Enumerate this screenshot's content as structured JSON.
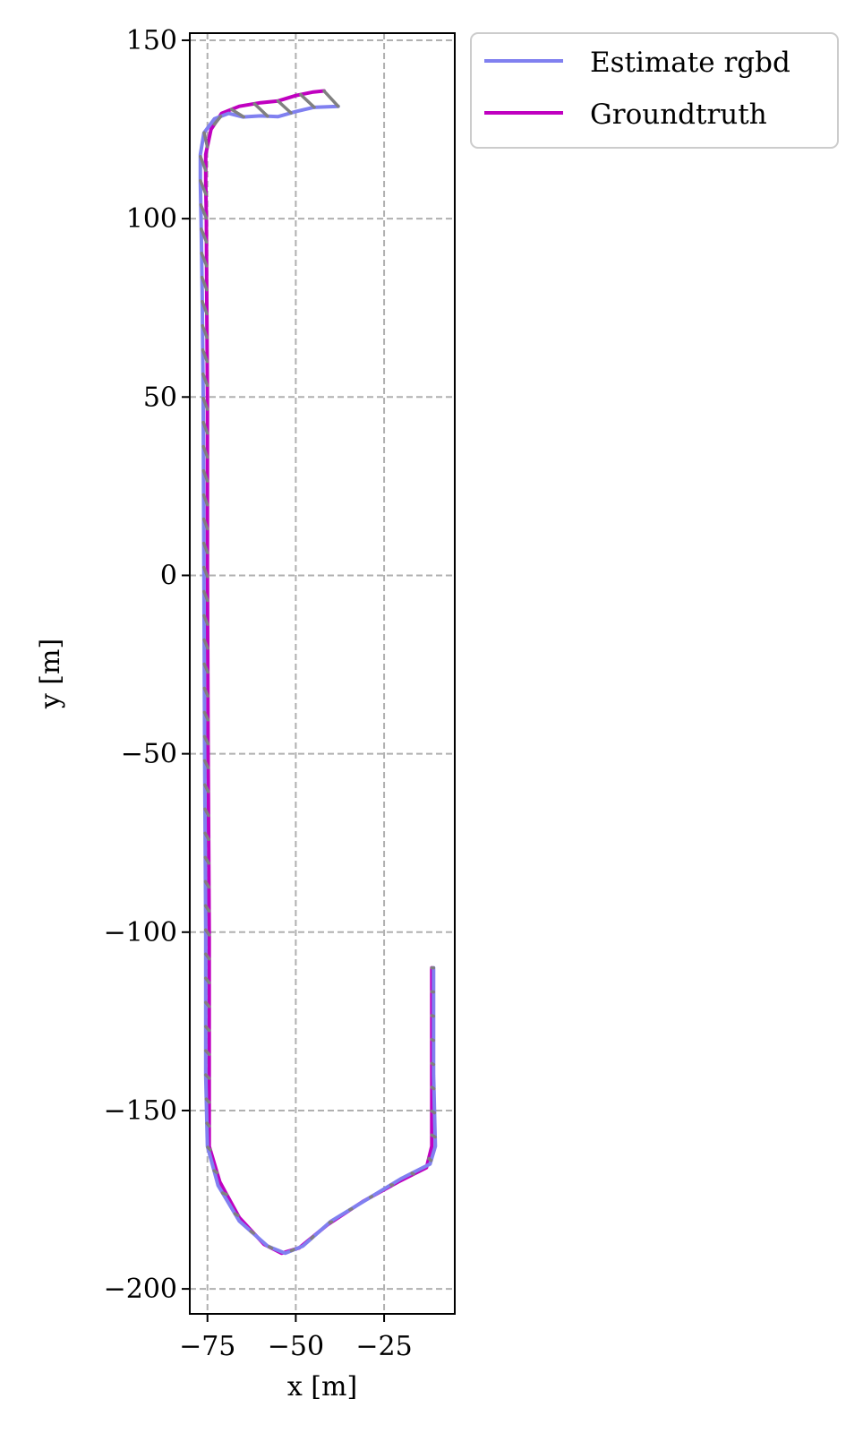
{
  "chart_data": {
    "type": "line",
    "title": "",
    "xlabel": "x [m]",
    "ylabel": "y [m]",
    "xlim": [
      -80,
      -5
    ],
    "ylim": [
      -207,
      152
    ],
    "xticks": [
      -75,
      -50,
      -25
    ],
    "xtick_labels": [
      "−75",
      "−50",
      "−25"
    ],
    "yticks": [
      150,
      100,
      50,
      0,
      -50,
      -100,
      -150,
      -200
    ],
    "ytick_labels": [
      "150",
      "100",
      "50",
      "0",
      "−50",
      "−100",
      "−150",
      "−200"
    ],
    "grid": true,
    "legend_position": "outside-top-right",
    "series": [
      {
        "name": "Estimate rgbd",
        "color": "#8080f0",
        "points": [
          [
            -11,
            -110
          ],
          [
            -11,
            -140
          ],
          [
            -10.5,
            -160
          ],
          [
            -12,
            -165
          ],
          [
            -20,
            -169
          ],
          [
            -30,
            -175
          ],
          [
            -40,
            -181
          ],
          [
            -48,
            -188
          ],
          [
            -53,
            -190
          ],
          [
            -58,
            -188
          ],
          [
            -66,
            -181
          ],
          [
            -72,
            -171
          ],
          [
            -75,
            -160
          ],
          [
            -75.5,
            -140
          ],
          [
            -75.5,
            -100
          ],
          [
            -75.8,
            -50
          ],
          [
            -76,
            0
          ],
          [
            -76.2,
            50
          ],
          [
            -76.5,
            80
          ],
          [
            -76.8,
            100
          ],
          [
            -77,
            110
          ],
          [
            -77,
            118
          ],
          [
            -76,
            124
          ],
          [
            -73,
            128
          ],
          [
            -69,
            129.5
          ],
          [
            -65,
            128.5
          ],
          [
            -60,
            128.8
          ],
          [
            -55,
            128.6
          ],
          [
            -50,
            130
          ],
          [
            -45,
            131.2
          ],
          [
            -38,
            131.5
          ]
        ]
      },
      {
        "name": "Groundtruth",
        "color": "#c000c0",
        "points": [
          [
            -11.5,
            -110
          ],
          [
            -11.5,
            -140
          ],
          [
            -11.5,
            -160
          ],
          [
            -13,
            -166
          ],
          [
            -21,
            -170
          ],
          [
            -31,
            -175.5
          ],
          [
            -41,
            -182
          ],
          [
            -49,
            -188.5
          ],
          [
            -54,
            -190
          ],
          [
            -59,
            -187.5
          ],
          [
            -66,
            -180
          ],
          [
            -71.5,
            -170
          ],
          [
            -74.5,
            -160
          ],
          [
            -74.5,
            -140
          ],
          [
            -74.5,
            -100
          ],
          [
            -74.8,
            -50
          ],
          [
            -75,
            0
          ],
          [
            -75,
            50
          ],
          [
            -75.2,
            80
          ],
          [
            -75.3,
            100
          ],
          [
            -75.5,
            110
          ],
          [
            -75.5,
            118
          ],
          [
            -74,
            125
          ],
          [
            -71,
            129.5
          ],
          [
            -66,
            131.5
          ],
          [
            -60,
            132.5
          ],
          [
            -55,
            133
          ],
          [
            -50,
            134.5
          ],
          [
            -45,
            135.5
          ],
          [
            -42,
            135.8
          ]
        ]
      }
    ],
    "error_segments_color": "#808080"
  },
  "legend": {
    "items": [
      {
        "label": "Estimate rgbd",
        "color": "#8080f0"
      },
      {
        "label": "Groundtruth",
        "color": "#c000c0"
      }
    ]
  }
}
